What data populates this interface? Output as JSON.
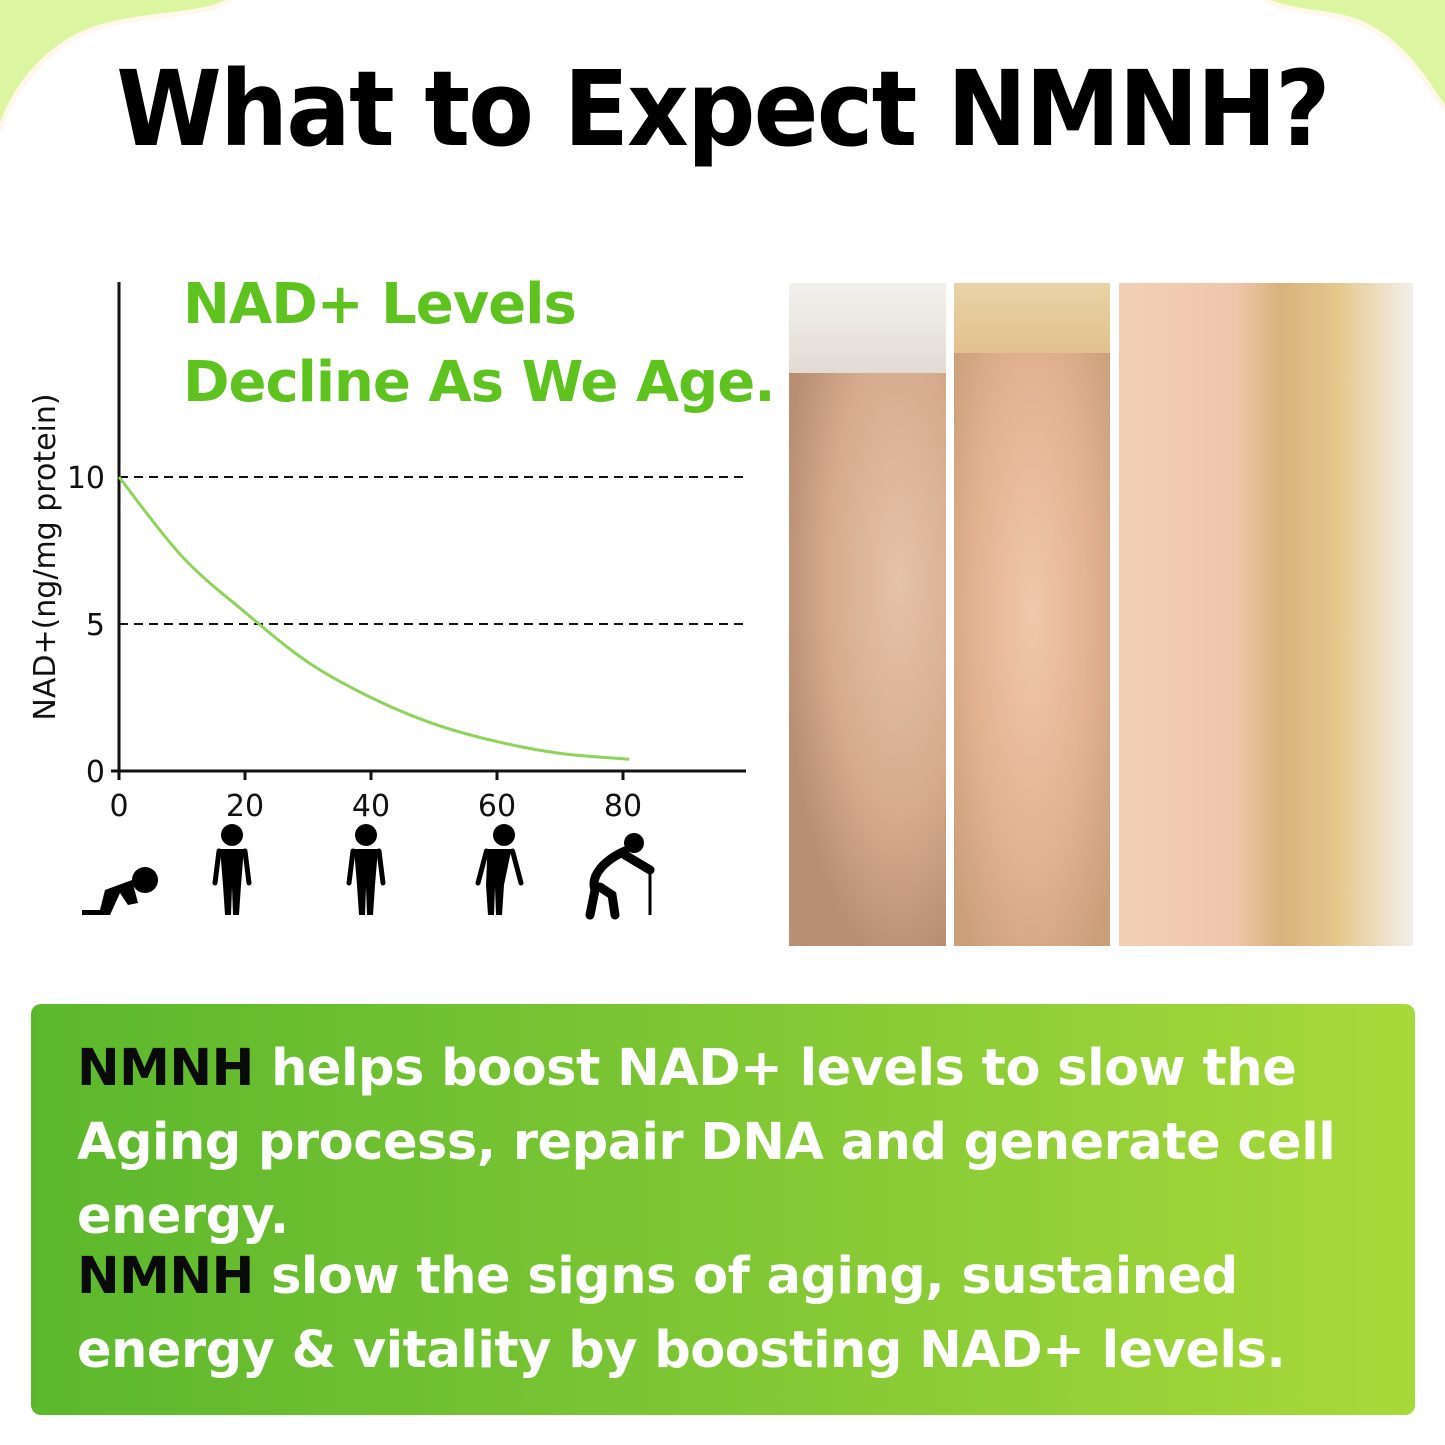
{
  "title": "What to Expect NMNH?",
  "headline": {
    "line1": "NAD+ Levels",
    "line2": "Decline As We Age."
  },
  "colors": {
    "accent_green": "#5fc31f",
    "curve": "#8ed45a",
    "box_start": "#5bb82c",
    "box_end": "#a8d93a",
    "corner_wash": "#dcf5a0"
  },
  "chart_data": {
    "type": "line",
    "title": "",
    "xlabel": "",
    "ylabel": "NAD+(ng/mg protein)",
    "xlim": [
      0,
      100
    ],
    "ylim": [
      0,
      10
    ],
    "x_ticks": [
      "0",
      "20",
      "40",
      "60",
      "80"
    ],
    "y_ticks": [
      "0",
      "5",
      "10"
    ],
    "gridlines": "dashed at y=5 and y=10",
    "x": [
      0,
      10,
      20,
      30,
      40,
      50,
      60,
      70,
      81
    ],
    "values": [
      10,
      7.3,
      5.4,
      3.7,
      2.5,
      1.6,
      1.0,
      0.6,
      0.4
    ],
    "x_icons": [
      "baby-crawling-icon",
      "young-man-icon",
      "adult-man-icon",
      "older-man-icon",
      "elderly-man-cane-icon"
    ]
  },
  "photos": [
    "older-woman-face",
    "middle-aged-woman-face",
    "young-woman-face"
  ],
  "benefits": [
    {
      "bold": "NMNH",
      "text": " helps boost NAD+ levels to slow the Aging process, repair DNA and generate cell energy."
    },
    {
      "bold": "NMNH",
      "text": " slow the signs of aging, sustained energy & vitality by boosting NAD+ levels."
    }
  ]
}
